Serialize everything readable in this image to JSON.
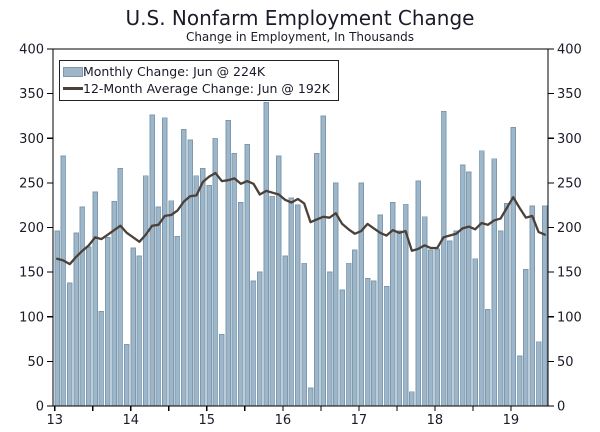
{
  "header": {
    "title": "U.S. Nonfarm Employment Change",
    "subtitle": "Change in Employment, In Thousands"
  },
  "legend": {
    "items": [
      {
        "type": "bar",
        "label": "Monthly Change: Jun @ 224K"
      },
      {
        "type": "line",
        "label": "12-Month Average Change: Jun @ 192K"
      }
    ]
  },
  "colors": {
    "bar_fill": "#9db6c9",
    "bar_stroke": "#7e99ad",
    "avg_line": "#4b4139",
    "axis": "#000000",
    "text": "#1a1a28",
    "background": "#ffffff"
  },
  "chart_data": {
    "type": "bar",
    "title": "U.S. Nonfarm Employment Change",
    "subtitle": "Change in Employment, In Thousands",
    "unit": "thousands of jobs, monthly change",
    "x_start": "2013-01",
    "x_end": "2019-06",
    "x_tick_labels": [
      "13",
      "14",
      "15",
      "16",
      "17",
      "18",
      "19"
    ],
    "y_ticks": [
      0,
      50,
      100,
      150,
      200,
      250,
      300,
      350,
      400
    ],
    "ylim": [
      0,
      400
    ],
    "grid": false,
    "legend_position": "top-left",
    "series": [
      {
        "name": "Monthly Change",
        "type": "bar",
        "last_point_label": "Jun @ 224K",
        "values": [
          196,
          280,
          138,
          194,
          223,
          178,
          240,
          106,
          189,
          229,
          266,
          69,
          177,
          168,
          258,
          326,
          223,
          323,
          230,
          190,
          310,
          298,
          258,
          266,
          247,
          300,
          80,
          320,
          283,
          228,
          293,
          140,
          150,
          340,
          235,
          280,
          168,
          233,
          225,
          160,
          20,
          283,
          325,
          150,
          250,
          130,
          160,
          175,
          250,
          143,
          140,
          214,
          134,
          228,
          196,
          226,
          16,
          252,
          212,
          175,
          176,
          330,
          185,
          196,
          270,
          262,
          165,
          286,
          108,
          277,
          196,
          227,
          312,
          56,
          153,
          224,
          72,
          224
        ]
      },
      {
        "name": "12-Month Average Change",
        "type": "line",
        "last_point_label": "Jun @ 192K",
        "values": [
          165,
          163,
          159,
          167,
          174,
          180,
          189,
          187,
          192,
          197,
          202,
          194,
          189,
          184,
          192,
          202,
          203,
          213,
          214,
          219,
          229,
          235,
          236,
          251,
          257,
          261,
          252,
          253,
          255,
          249,
          252,
          249,
          237,
          241,
          239,
          237,
          231,
          228,
          232,
          227,
          206,
          209,
          212,
          211,
          216,
          204,
          198,
          193,
          196,
          204,
          199,
          194,
          191,
          197,
          194,
          196,
          174,
          176,
          180,
          177,
          177,
          189,
          191,
          193,
          199,
          201,
          198,
          205,
          203,
          208,
          210,
          222,
          234,
          222,
          211,
          213,
          195,
          192
        ]
      }
    ]
  }
}
